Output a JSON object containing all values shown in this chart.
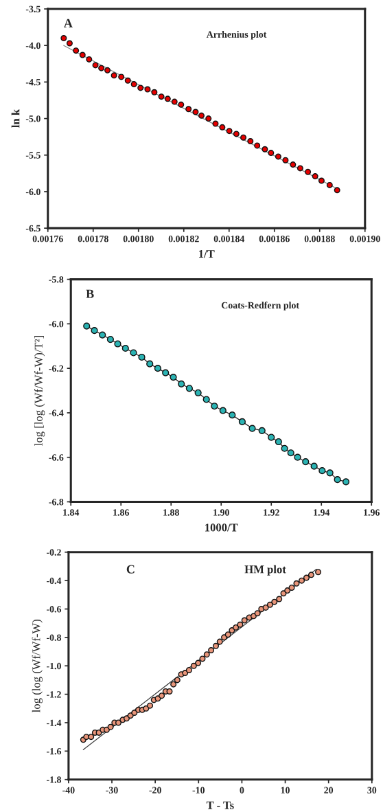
{
  "chart_data": [
    {
      "type": "scatter",
      "xlabel": "1/T",
      "ylabel": "ln k",
      "annotations": [
        "A",
        "Arrhenius plot"
      ],
      "marker": "circle",
      "xlim": [
        0.00176,
        0.0019
      ],
      "xticks": [
        0.00176,
        0.00178,
        {
          "value": 0.0018,
          "label": "0.00180"
        },
        0.00182,
        0.00184,
        0.00186,
        0.00188,
        {
          "value": 0.0019,
          "label": "0.00190"
        }
      ],
      "ylim": [
        -6.5,
        -3.5
      ],
      "yticks": [
        -6.5,
        {
          "value": -6,
          "label": "-6.0"
        },
        -5.5,
        {
          "value": -5,
          "label": "-5.0"
        },
        -4.5,
        {
          "value": -4,
          "label": "-4.0"
        },
        -3.5
      ],
      "series": [
        {
          "color": "#e60000",
          "x": [
            0.001767,
            0.0017696,
            0.0017724,
            0.0017753,
            0.0017782,
            0.001781,
            0.0017836,
            0.0017863,
            0.0017892,
            0.0017924,
            0.0017953,
            0.001798,
            0.0018009,
            0.001804,
            0.001807,
            0.0018101,
            0.0018129,
            0.0018159,
            0.0018188,
            0.0018221,
            0.0018252,
            0.0018278,
            0.0018309,
            0.001834,
            0.001837,
            0.0018401,
            0.0018432,
            0.0018463,
            0.0018494,
            0.0018524,
            0.0018558,
            0.0018585,
            0.0018617,
            0.0018649,
            0.0018682,
            0.0018714,
            0.0018748,
            0.001878,
            0.0018808,
            0.0018844,
            0.0018877
          ],
          "values": [
            -3.9,
            -3.97,
            -4.07,
            -4.13,
            -4.19,
            -4.27,
            -4.31,
            -4.34,
            -4.41,
            -4.43,
            -4.48,
            -4.53,
            -4.58,
            -4.6,
            -4.64,
            -4.7,
            -4.73,
            -4.77,
            -4.81,
            -4.87,
            -4.91,
            -4.96,
            -5.0,
            -5.07,
            -5.12,
            -5.17,
            -5.21,
            -5.26,
            -5.31,
            -5.37,
            -5.42,
            -5.47,
            -5.52,
            -5.57,
            -5.63,
            -5.68,
            -5.73,
            -5.79,
            -5.85,
            -5.91,
            -5.98
          ]
        },
        {
          "type": "line",
          "marker": "none",
          "color": "#808080",
          "x": [
            0.001767,
            0.0018877
          ],
          "values": [
            -4.0,
            -5.96
          ]
        }
      ]
    },
    {
      "type": "line",
      "xlabel": "1000/T",
      "ylabel": "log [log (Wf/Wf-W)/T²]",
      "annotations": [
        "B",
        "Coats-Redfern plot"
      ],
      "marker": "circle",
      "xlim": [
        1.84,
        1.96
      ],
      "xticks": [
        1.84,
        1.86,
        1.88,
        {
          "value": 1.9,
          "label": "1.90"
        },
        1.92,
        1.94,
        {
          "value": 1.96,
          "label": "1.96"
        }
      ],
      "ylim": [
        -6.8,
        -5.8
      ],
      "yticks": [
        -6.8,
        -6.6,
        -6.4,
        -6.2,
        {
          "value": -6,
          "label": "-6.0"
        },
        -5.8
      ],
      "series": [
        {
          "color": "#2bb3b3",
          "x": [
            1.8463,
            1.8494,
            1.8526,
            1.8558,
            1.8587,
            1.8618,
            1.865,
            1.8683,
            1.8715,
            1.8747,
            1.8778,
            1.8809,
            1.8841,
            1.8873,
            1.8908,
            1.8941,
            1.8973,
            1.9007,
            1.9044,
            1.9084,
            1.9124,
            1.9163,
            1.92,
            1.9229,
            1.9253,
            1.9278,
            1.9305,
            1.9337,
            1.9371,
            1.9403,
            1.9434,
            1.9464,
            1.9498
          ],
          "values": [
            -6.01,
            -6.03,
            -6.05,
            -6.07,
            -6.09,
            -6.11,
            -6.13,
            -6.15,
            -6.18,
            -6.2,
            -6.22,
            -6.24,
            -6.27,
            -6.29,
            -6.31,
            -6.34,
            -6.37,
            -6.39,
            -6.41,
            -6.44,
            -6.47,
            -6.48,
            -6.51,
            -6.53,
            -6.56,
            -6.58,
            -6.6,
            -6.62,
            -6.64,
            -6.66,
            -6.67,
            -6.7,
            -6.71
          ]
        }
      ]
    },
    {
      "type": "scatter",
      "xlabel": "T - Ts",
      "ylabel": "log (log (Wf/Wf-W)",
      "annotations": [
        "C",
        "HM plot"
      ],
      "marker": "circle",
      "xlim": [
        -40,
        30
      ],
      "xticks": [
        -40,
        -30,
        -20,
        -10,
        0,
        10,
        20,
        30
      ],
      "ylim": [
        -1.8,
        -0.2
      ],
      "yticks": [
        -1.8,
        -1.6,
        -1.4,
        -1.2,
        {
          "value": -1,
          "label": "-1.0"
        },
        -0.8,
        -0.6,
        -0.4,
        -0.2
      ],
      "series": [
        {
          "color": "#e8957a",
          "x": [
            -36.6,
            -35.9,
            -34.8,
            -33.9,
            -33.0,
            -32.1,
            -31.2,
            -30.3,
            -29.4,
            -28.5,
            -27.5,
            -26.6,
            -25.7,
            -24.8,
            -23.9,
            -23.0,
            -22.1,
            -21.2,
            -20.3,
            -19.4,
            -18.5,
            -17.6,
            -16.7,
            -15.8,
            -14.9,
            -14.0,
            -13.1,
            -12.2,
            -11.1,
            -10.1,
            -9.1,
            -8.1,
            -7.1,
            -6.0,
            -5.1,
            -4.1,
            -3.2,
            -2.3,
            -1.4,
            -0.4,
            0.6,
            1.7,
            2.7,
            3.6,
            4.5,
            5.5,
            6.5,
            7.5,
            8.6,
            9.6,
            10.5,
            11.5,
            12.6,
            13.8,
            14.9,
            16.0,
            17.6
          ],
          "values": [
            -1.52,
            -1.5,
            -1.5,
            -1.47,
            -1.47,
            -1.45,
            -1.45,
            -1.43,
            -1.4,
            -1.4,
            -1.38,
            -1.37,
            -1.35,
            -1.33,
            -1.31,
            -1.31,
            -1.3,
            -1.28,
            -1.24,
            -1.23,
            -1.21,
            -1.18,
            -1.18,
            -1.13,
            -1.1,
            -1.06,
            -1.05,
            -1.03,
            -1.0,
            -0.98,
            -0.95,
            -0.92,
            -0.89,
            -0.86,
            -0.83,
            -0.8,
            -0.78,
            -0.75,
            -0.73,
            -0.71,
            -0.68,
            -0.66,
            -0.65,
            -0.63,
            -0.6,
            -0.59,
            -0.57,
            -0.55,
            -0.53,
            -0.49,
            -0.47,
            -0.45,
            -0.42,
            -0.4,
            -0.38,
            -0.36,
            -0.34
          ]
        },
        {
          "type": "line",
          "marker": "none",
          "color": "#404040",
          "x": [
            -36.6,
            17.2
          ],
          "values": [
            -1.59,
            -0.32
          ]
        }
      ]
    }
  ]
}
